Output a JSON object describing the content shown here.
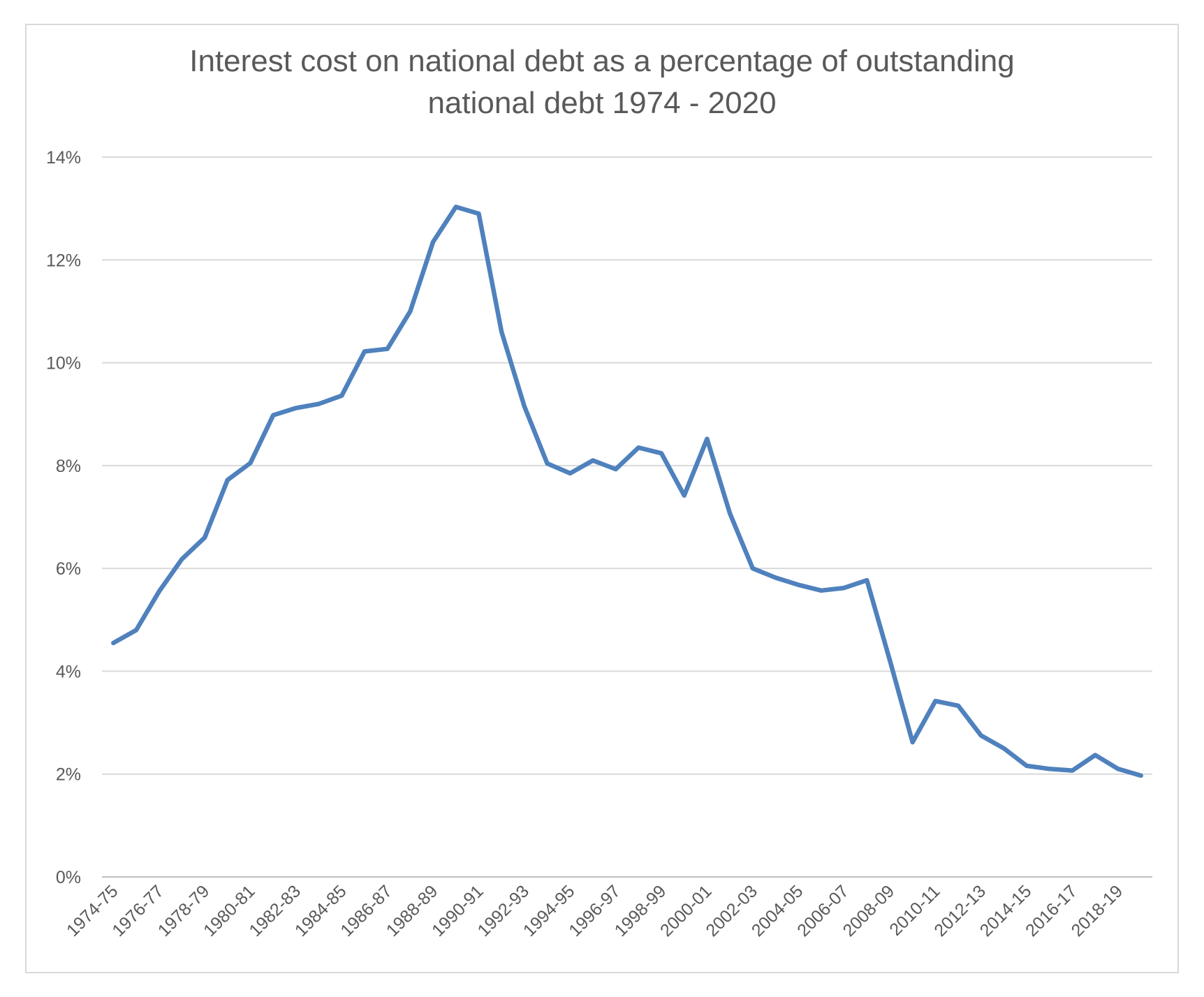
{
  "chart_data": {
    "type": "line",
    "title_lines": [
      "Interest cost on national debt as a percentage of outstanding",
      "national debt 1974 - 2020"
    ],
    "xlabel": "",
    "ylabel": "",
    "ylim": [
      0,
      14
    ],
    "y_ticks": [
      "0%",
      "2%",
      "4%",
      "6%",
      "8%",
      "10%",
      "12%",
      "14%"
    ],
    "grid": true,
    "legend": "none",
    "line_color": "#4f81bd",
    "categories": [
      "1974-75",
      "1975-76",
      "1976-77",
      "1977-78",
      "1978-79",
      "1979-80",
      "1980-81",
      "1981-82",
      "1982-83",
      "1983-84",
      "1984-85",
      "1985-86",
      "1986-87",
      "1987-88",
      "1988-89",
      "1989-90",
      "1990-91",
      "1991-92",
      "1992-93",
      "1993-94",
      "1994-95",
      "1995-96",
      "1996-97",
      "1997-98",
      "1998-99",
      "1999-00",
      "2000-01",
      "2001-02",
      "2002-03",
      "2003-04",
      "2004-05",
      "2005-06",
      "2006-07",
      "2007-08",
      "2008-09",
      "2009-10",
      "2010-11",
      "2011-12",
      "2012-13",
      "2013-14",
      "2014-15",
      "2015-16",
      "2016-17",
      "2017-18",
      "2018-19",
      "2019-20"
    ],
    "x_tick_labels": [
      "1974-75",
      "1976-77",
      "1978-79",
      "1980-81",
      "1982-83",
      "1984-85",
      "1986-87",
      "1988-89",
      "1990-91",
      "1992-93",
      "1994-95",
      "1996-97",
      "1998-99",
      "2000-01",
      "2002-03",
      "2004-05",
      "2006-07",
      "2008-09",
      "2010-11",
      "2012-13",
      "2014-15",
      "2016-17",
      "2018-19"
    ],
    "series": [
      {
        "values": [
          4.55,
          4.8,
          5.55,
          6.18,
          6.6,
          7.72,
          8.05,
          8.98,
          9.12,
          9.2,
          9.36,
          10.22,
          10.27,
          11.0,
          12.35,
          13.03,
          12.9,
          10.6,
          9.15,
          8.04,
          7.85,
          8.1,
          7.93,
          8.35,
          8.24,
          7.42,
          8.52,
          7.07,
          6.0,
          5.82,
          5.68,
          5.57,
          5.62,
          5.77,
          4.22,
          2.62,
          3.42,
          3.33,
          2.75,
          2.5,
          2.16,
          2.1,
          2.07,
          2.37,
          2.1,
          1.97
        ]
      }
    ]
  }
}
